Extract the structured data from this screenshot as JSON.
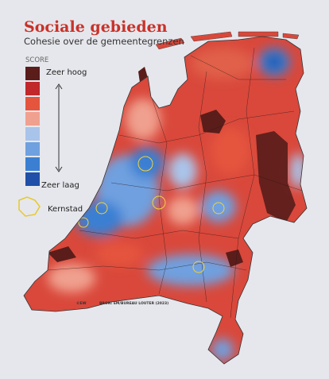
{
  "header": {
    "title": "Sociale gebieden",
    "subtitle": "Cohesie over de gemeentegrenzen"
  },
  "legend": {
    "title": "SCORE",
    "high": "Zeer hoog",
    "low": "Zeer laag",
    "colors": [
      "#5a1d1a",
      "#c0282a",
      "#e5553e",
      "#f0a08f",
      "#a9c4ea",
      "#6fa0df",
      "#3b7fd3",
      "#1f4fa8"
    ],
    "core_city": "Kernstad"
  },
  "credits": {
    "copyright": "©EW",
    "source": "BRON: EM/BUREAU LOUTER (2023)"
  }
}
